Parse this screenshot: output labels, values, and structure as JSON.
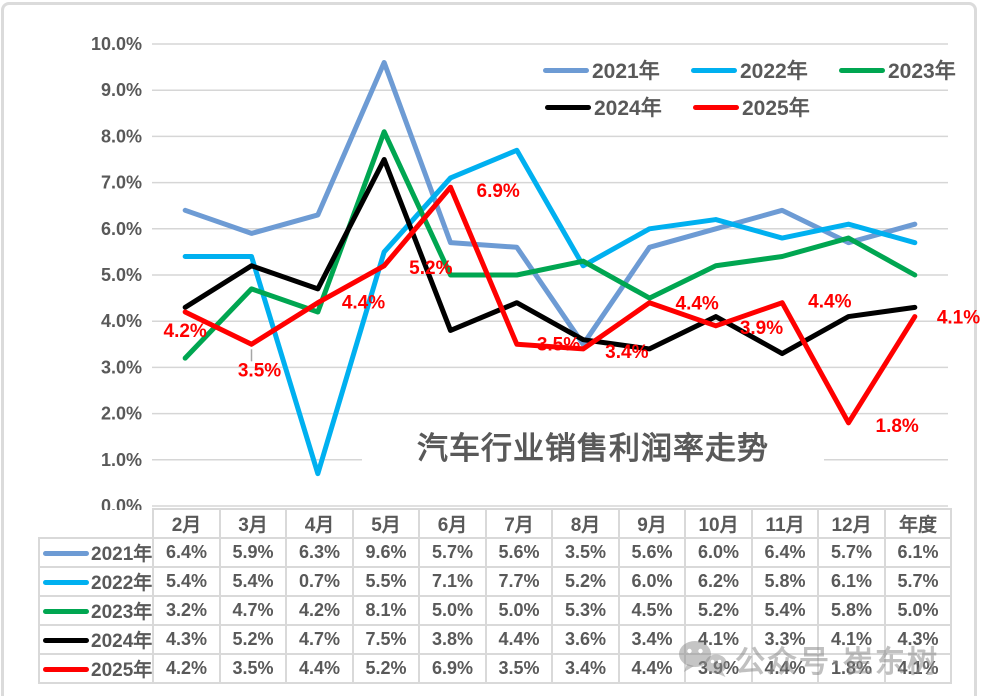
{
  "chart_data": {
    "type": "line",
    "title": "汽车行业销售利润率走势",
    "categories": [
      "2月",
      "3月",
      "4月",
      "5月",
      "6月",
      "7月",
      "8月",
      "9月",
      "10月",
      "11月",
      "12月",
      "年度"
    ],
    "xlabel": "",
    "ylabel": "",
    "ylim": [
      0,
      10
    ],
    "y_ticks": [
      "0.0%",
      "1.0%",
      "2.0%",
      "3.0%",
      "4.0%",
      "5.0%",
      "6.0%",
      "7.0%",
      "8.0%",
      "9.0%",
      "10.0%"
    ],
    "grid": true,
    "legend_position": "top-right",
    "series": [
      {
        "name": "2021年",
        "color": "#6D9BD4",
        "values": [
          6.4,
          5.9,
          6.3,
          9.6,
          5.7,
          5.6,
          3.5,
          5.6,
          6.0,
          6.4,
          5.7,
          6.1
        ]
      },
      {
        "name": "2022年",
        "color": "#00B0F0",
        "values": [
          5.4,
          5.4,
          0.7,
          5.5,
          7.1,
          7.7,
          5.2,
          6.0,
          6.2,
          5.8,
          6.1,
          5.7
        ]
      },
      {
        "name": "2023年",
        "color": "#00A651",
        "values": [
          3.2,
          4.7,
          4.2,
          8.1,
          5.0,
          5.0,
          5.3,
          4.5,
          5.2,
          5.4,
          5.8,
          5.0
        ]
      },
      {
        "name": "2024年",
        "color": "#000000",
        "values": [
          4.3,
          5.2,
          4.7,
          7.5,
          3.8,
          4.4,
          3.6,
          3.4,
          4.1,
          3.3,
          4.1,
          4.3
        ]
      },
      {
        "name": "2025年",
        "color": "#FF0000",
        "label_color": "#FF0000",
        "values": [
          4.2,
          3.5,
          4.4,
          5.2,
          6.9,
          3.5,
          3.4,
          4.4,
          3.9,
          4.4,
          1.8,
          4.1
        ],
        "point_labels": [
          "4.2%",
          "3.5%",
          "4.4%",
          "5.2%",
          "6.9%",
          "3.5%",
          "3.4%",
          "4.4%",
          "3.9%",
          "4.4%",
          "1.8%",
          "4.1%"
        ]
      }
    ]
  },
  "table": {
    "corner_label": "",
    "col_headers": [
      "2月",
      "3月",
      "4月",
      "5月",
      "6月",
      "7月",
      "8月",
      "9月",
      "10月",
      "11月",
      "12月",
      "年度"
    ],
    "rows": [
      {
        "label": "2021年",
        "color": "#6D9BD4",
        "values": [
          "6.4%",
          "5.9%",
          "6.3%",
          "9.6%",
          "5.7%",
          "5.6%",
          "3.5%",
          "5.6%",
          "6.0%",
          "6.4%",
          "5.7%",
          "6.1%"
        ]
      },
      {
        "label": "2022年",
        "color": "#00B0F0",
        "values": [
          "5.4%",
          "5.4%",
          "0.7%",
          "5.5%",
          "7.1%",
          "7.7%",
          "5.2%",
          "6.0%",
          "6.2%",
          "5.8%",
          "6.1%",
          "5.7%"
        ]
      },
      {
        "label": "2023年",
        "color": "#00A651",
        "values": [
          "3.2%",
          "4.7%",
          "4.2%",
          "8.1%",
          "5.0%",
          "5.0%",
          "5.3%",
          "4.5%",
          "5.2%",
          "5.4%",
          "5.8%",
          "5.0%"
        ]
      },
      {
        "label": "2024年",
        "color": "#000000",
        "values": [
          "4.3%",
          "5.2%",
          "4.7%",
          "7.5%",
          "3.8%",
          "4.4%",
          "3.6%",
          "3.4%",
          "4.1%",
          "3.3%",
          "4.1%",
          "4.3%"
        ]
      },
      {
        "label": "2025年",
        "color": "#FF0000",
        "values": [
          "4.2%",
          "3.5%",
          "4.4%",
          "5.2%",
          "6.9%",
          "3.5%",
          "3.4%",
          "4.4%",
          "3.9%",
          "4.4%",
          "1.8%",
          "4.1%"
        ]
      }
    ]
  },
  "watermark": {
    "text": "公众号·崔东树",
    "icon": "wechat-icon"
  },
  "colors": {
    "grid": "#D6D6D6",
    "axis_text": "#595959",
    "table_border": "#D9D9D9",
    "table_text": "#595959",
    "title_text": "#595959",
    "data_label": "#FF0000",
    "watermark": "#8C8C8C",
    "frame_border": "#DBDBDB"
  }
}
